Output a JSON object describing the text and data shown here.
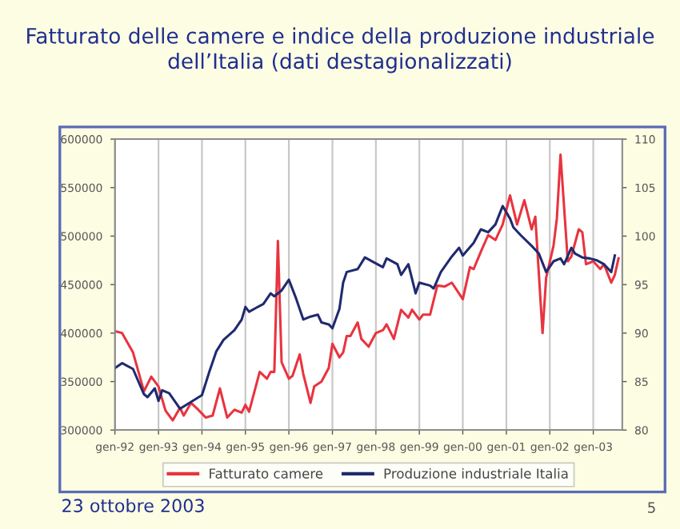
{
  "chart_data": {
    "type": "line",
    "title": "Fatturato delle camere e indice della produzione industriale\ndell’Italia (dati destagionalizzati)",
    "annotations": [
      "23 ottobre 2003",
      "5"
    ],
    "series": [
      {
        "name": "Fatturato camere",
        "color": "#e8343f",
        "x": [
          "1992-01",
          "1992-03",
          "1992-06",
          "1992-09",
          "1992-11",
          "1993-01",
          "1993-03",
          "1993-05",
          "1993-07",
          "1993-08",
          "1993-10",
          "1993-12",
          "1994-02",
          "1994-04",
          "1994-06",
          "1994-08",
          "1994-10",
          "1994-12",
          "1995-01",
          "1995-02",
          "1995-05",
          "1995-07",
          "1995-08",
          "1995-09",
          "1995-10",
          "1995-11",
          "1996-01",
          "1996-02",
          "1996-04",
          "1996-05",
          "1996-07",
          "1996-08",
          "1996-10",
          "1996-12",
          "1997-01",
          "1997-03",
          "1997-04",
          "1997-05",
          "1997-06",
          "1997-08",
          "1997-09",
          "1997-11",
          "1998-01",
          "1998-03",
          "1998-04",
          "1998-06",
          "1998-08",
          "1998-10",
          "1998-11",
          "1999-01",
          "1999-02",
          "1999-04",
          "1999-06",
          "1999-08",
          "1999-10",
          "2000-01",
          "2000-03",
          "2000-04",
          "2000-06",
          "2000-08",
          "2000-10",
          "2000-12",
          "2001-02",
          "2001-04",
          "2001-06",
          "2001-08",
          "2001-09",
          "2001-11",
          "2001-12",
          "2002-02",
          "2002-03",
          "2002-04",
          "2002-06",
          "2002-07",
          "2002-09",
          "2002-10",
          "2002-11",
          "2003-01",
          "2003-03",
          "2003-04",
          "2003-06",
          "2003-07",
          "2003-08"
        ],
        "values": [
          402000,
          400000,
          380000,
          340000,
          355000,
          345000,
          320000,
          310000,
          323000,
          315000,
          328000,
          321000,
          313000,
          315000,
          343000,
          313000,
          321000,
          318000,
          326000,
          319000,
          360000,
          353000,
          360000,
          360000,
          495000,
          370000,
          353000,
          356000,
          378000,
          358000,
          328000,
          345000,
          350000,
          364000,
          389000,
          375000,
          380000,
          397000,
          397000,
          411000,
          394000,
          386000,
          400000,
          403000,
          409000,
          394000,
          424000,
          416000,
          424000,
          414000,
          419000,
          419000,
          449000,
          448000,
          452000,
          435000,
          468000,
          466000,
          484000,
          501000,
          496000,
          512000,
          542000,
          512000,
          537000,
          507000,
          520000,
          400000,
          457000,
          490000,
          518000,
          584000,
          474000,
          479000,
          507000,
          504000,
          471000,
          474000,
          466000,
          471000,
          452000,
          460000,
          477000
        ]
      },
      {
        "name": "Produzione industriale Italia",
        "color": "#1f2a6e",
        "axis": "y2",
        "x": [
          "1992-01",
          "1992-03",
          "1992-06",
          "1992-09",
          "1992-10",
          "1992-12",
          "1993-01",
          "1993-02",
          "1993-04",
          "1993-07",
          "1993-10",
          "1994-01",
          "1994-03",
          "1994-05",
          "1994-07",
          "1994-10",
          "1994-12",
          "1995-01",
          "1995-02",
          "1995-04",
          "1995-06",
          "1995-08",
          "1995-09",
          "1995-11",
          "1996-01",
          "1996-03",
          "1996-05",
          "1996-07",
          "1996-09",
          "1996-10",
          "1996-12",
          "1997-01",
          "1997-03",
          "1997-04",
          "1997-05",
          "1997-08",
          "1997-10",
          "1997-12",
          "1998-03",
          "1998-04",
          "1998-07",
          "1998-08",
          "1998-10",
          "1998-12",
          "1999-01",
          "1999-04",
          "1999-05",
          "1999-07",
          "1999-10",
          "1999-12",
          "2000-01",
          "2000-04",
          "2000-06",
          "2000-08",
          "2000-10",
          "2000-12",
          "2001-02",
          "2001-03",
          "2001-05",
          "2001-08",
          "2001-10",
          "2001-12",
          "2002-02",
          "2002-04",
          "2002-05",
          "2002-07",
          "2002-08",
          "2002-10",
          "2002-12",
          "2003-02",
          "2003-04",
          "2003-06",
          "2003-07"
        ],
        "values": [
          86.4,
          86.9,
          86.3,
          83.7,
          83.4,
          84.3,
          83.0,
          84.1,
          83.8,
          82.2,
          82.9,
          83.6,
          85.9,
          88.1,
          89.3,
          90.3,
          91.4,
          92.7,
          92.2,
          92.6,
          93.0,
          94.1,
          93.8,
          94.4,
          95.5,
          93.6,
          91.4,
          91.7,
          91.9,
          91.1,
          90.9,
          90.5,
          92.5,
          95.2,
          96.3,
          96.6,
          97.8,
          97.4,
          96.8,
          97.7,
          97.1,
          96.0,
          97.1,
          94.1,
          95.2,
          94.9,
          94.6,
          96.3,
          97.9,
          98.8,
          98.0,
          99.3,
          100.7,
          100.4,
          101.2,
          103.1,
          101.8,
          100.9,
          100.1,
          99.0,
          98.2,
          96.3,
          97.4,
          97.7,
          97.1,
          98.8,
          98.2,
          97.8,
          97.7,
          97.5,
          97.1,
          96.3,
          98.0
        ]
      }
    ],
    "xlim": [
      "1992-01",
      "2003-09"
    ],
    "xticks": [
      {
        "value": "1992-01",
        "label": "gen-92"
      },
      {
        "value": "1993-01",
        "label": "gen-93"
      },
      {
        "value": "1994-01",
        "label": "gen-94"
      },
      {
        "value": "1995-01",
        "label": "gen-95"
      },
      {
        "value": "1996-01",
        "label": "gen-96"
      },
      {
        "value": "1997-01",
        "label": "gen-97"
      },
      {
        "value": "1998-01",
        "label": "gen-98"
      },
      {
        "value": "1999-01",
        "label": "gen-99"
      },
      {
        "value": "2000-01",
        "label": "gen-00"
      },
      {
        "value": "2001-01",
        "label": "gen-01"
      },
      {
        "value": "2002-01",
        "label": "gen-02"
      },
      {
        "value": "2003-01",
        "label": "gen-03"
      }
    ],
    "ylim": [
      300000,
      600000
    ],
    "yticks": [
      300000,
      350000,
      400000,
      450000,
      500000,
      550000,
      600000
    ],
    "y2lim": [
      80,
      110
    ],
    "y2ticks": [
      80,
      85,
      90,
      95,
      100,
      105,
      110
    ],
    "grid": "x",
    "legend": "bottom",
    "marker": "none",
    "line_style": "solid"
  }
}
